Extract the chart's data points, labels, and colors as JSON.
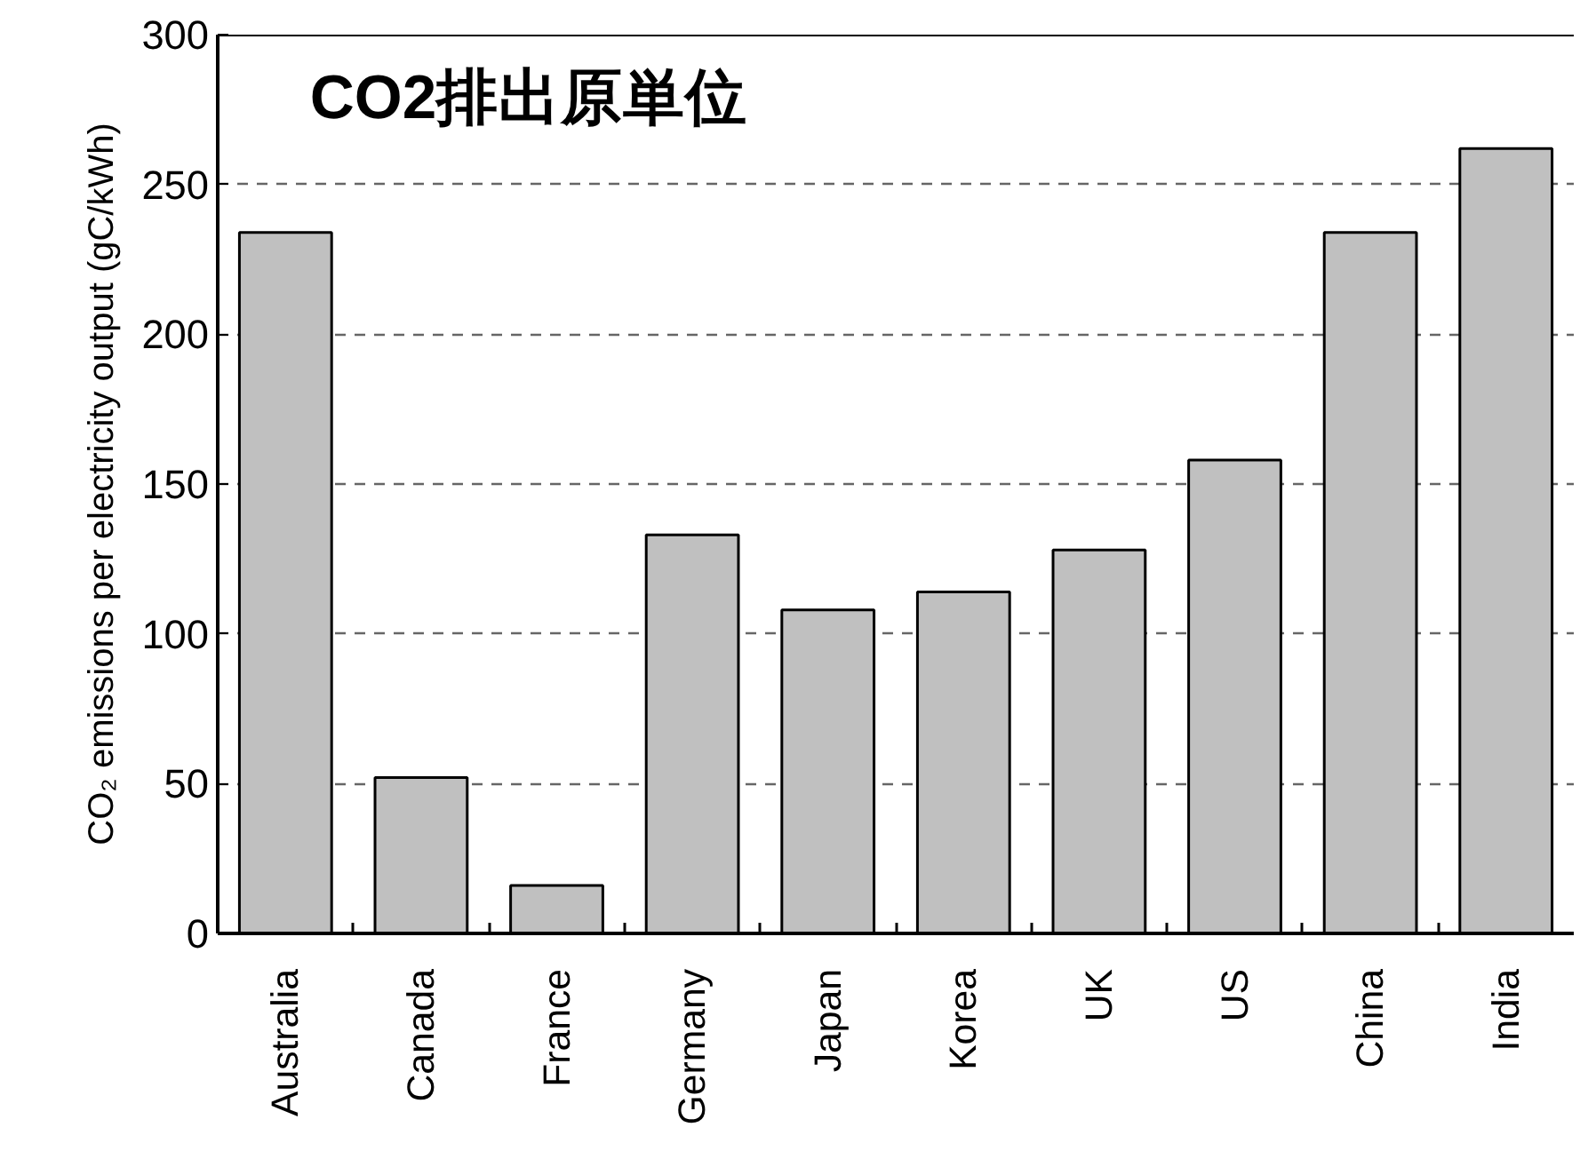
{
  "chart_data": {
    "type": "bar",
    "title": "CO2排出原単位",
    "ylabel": "CO₂ emissions per electricity output (gC/kWh)",
    "categories": [
      "Australia",
      "Canada",
      "France",
      "Germany",
      "Japan",
      "Korea",
      "UK",
      "US",
      "China",
      "India"
    ],
    "values": [
      234,
      52,
      16,
      133,
      108,
      114,
      128,
      158,
      234,
      262
    ],
    "color": "#c0c0c0",
    "ylim": [
      0,
      300
    ],
    "yticks": [
      0,
      50,
      100,
      150,
      200,
      250,
      300
    ],
    "grid": "y"
  }
}
